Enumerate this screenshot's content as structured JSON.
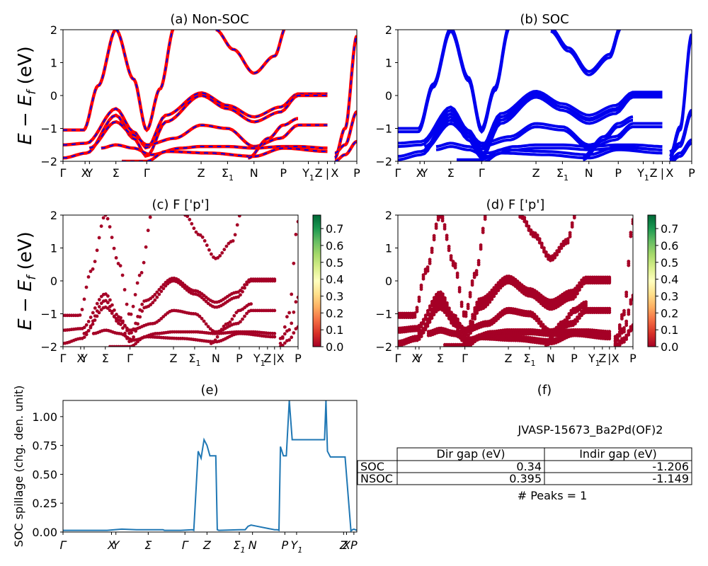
{
  "panels": {
    "a": {
      "title": "(a) Non-SOC"
    },
    "b": {
      "title": "(b) SOC"
    },
    "c": {
      "title": "(c)  F ['p']"
    },
    "d": {
      "title": "(d) F ['p']"
    },
    "e": {
      "title": "(e)"
    },
    "f": {
      "title": "(f)"
    }
  },
  "band_ylabel": "E − E",
  "band_ylabel_sub": "f",
  "band_ylabel_unit": " (eV)",
  "band_yticks": [
    "2",
    "1",
    "0",
    "−1",
    "−2"
  ],
  "kpath_labels": [
    "Γ",
    "X",
    "Y",
    "Σ",
    "Γ",
    "Z",
    "Σ",
    "N",
    "P",
    "Y",
    "Z",
    "|",
    "X",
    "P"
  ],
  "kpath_subs": {
    "Sigma1": "1",
    "Y1": "1"
  },
  "colorbar_ticks": [
    "0.7",
    "0.6",
    "0.5",
    "0.4",
    "0.3",
    "0.2",
    "0.1",
    "0.0"
  ],
  "spillage_ylabel": "SOC spillage (chg. den. unit)",
  "spillage_yticks": [
    "1.00",
    "0.75",
    "0.50",
    "0.25",
    "0.00"
  ],
  "spillage_xticks": [
    "Γ",
    "X",
    "Y",
    "Σ",
    "Γ",
    "Z",
    "Σ",
    "N",
    "P",
    "Y",
    "Z",
    "X",
    "P"
  ],
  "table": {
    "name": "JVASP-15673_Ba2Pd(OF)2",
    "headers": [
      "Dir gap (eV)",
      "Indir gap (eV)"
    ],
    "rows": [
      {
        "label": "SOC",
        "dir": "0.34",
        "indir": "-1.206"
      },
      {
        "label": "NSOC",
        "dir": "0.395",
        "indir": "-1.149"
      }
    ],
    "peaks": "# Peaks = 1"
  },
  "colors": {
    "nsoc": "#ff0000",
    "soc": "#0000ee",
    "spill": "#1f77b4",
    "proj_low": "#a50026",
    "proj_high": "#006837"
  },
  "chart_data": [
    {
      "type": "line",
      "title": "(a) Non-SOC",
      "ylabel": "E − E_f (eV)",
      "ylim": [
        -2,
        2
      ],
      "x_ticks": [
        "Γ",
        "X",
        "Y",
        "Σ",
        "Γ",
        "Z",
        "Σ1",
        "N",
        "P",
        "Y1",
        "Z",
        "|",
        "X",
        "P"
      ],
      "series": [
        {
          "name": "Non-SOC",
          "color": "#ff0000"
        },
        {
          "name": "SOC",
          "color": "#0000ee"
        }
      ]
    },
    {
      "type": "line",
      "title": "(b) SOC",
      "ylabel": "E − E_f (eV)",
      "ylim": [
        -2,
        2
      ],
      "x_ticks": [
        "Γ",
        "X",
        "Y",
        "Σ",
        "Γ",
        "Z",
        "Σ1",
        "N",
        "P",
        "Y1",
        "Z",
        "|",
        "X",
        "P"
      ]
    },
    {
      "type": "scatter",
      "title": "(c)  F ['p']",
      "ylim": [
        -2,
        2
      ],
      "colorbar": {
        "min": 0.0,
        "max": 0.78,
        "ticks": [
          0.0,
          0.1,
          0.2,
          0.3,
          0.4,
          0.5,
          0.6,
          0.7
        ],
        "cmap": "RdYlGn"
      }
    },
    {
      "type": "scatter",
      "title": "(d) F ['p']",
      "ylim": [
        -2,
        2
      ],
      "colorbar": {
        "min": 0.0,
        "max": 0.78,
        "ticks": [
          0.0,
          0.1,
          0.2,
          0.3,
          0.4,
          0.5,
          0.6,
          0.7
        ],
        "cmap": "RdYlGn"
      }
    },
    {
      "type": "line",
      "title": "(e)",
      "ylabel": "SOC spillage (chg. den. unit)",
      "ylim": [
        0,
        1.14
      ],
      "x": [
        0,
        0.05,
        0.1,
        0.15,
        0.175,
        0.2,
        0.25,
        0.3,
        0.34,
        0.345,
        0.4,
        0.44,
        0.445,
        0.46,
        0.47,
        0.48,
        0.49,
        0.5,
        0.52,
        0.525,
        0.53,
        0.6,
        0.62,
        0.63,
        0.64,
        0.66,
        0.7,
        0.72,
        0.73,
        0.735,
        0.74,
        0.75,
        0.76,
        0.77,
        0.78,
        0.8,
        0.85,
        0.89,
        0.895,
        0.9,
        0.91,
        0.92,
        0.93,
        0.96,
        0.98,
        0.985,
        0.99,
        1.0
      ],
      "y": [
        0.015,
        0.015,
        0.015,
        0.015,
        0.02,
        0.025,
        0.02,
        0.02,
        0.02,
        0.015,
        0.015,
        0.02,
        0.015,
        0.7,
        0.64,
        0.8,
        0.75,
        0.66,
        0.66,
        0.02,
        0.015,
        0.02,
        0.02,
        0.05,
        0.06,
        0.05,
        0.03,
        0.02,
        0.02,
        0.015,
        0.74,
        0.66,
        0.66,
        1.14,
        0.8,
        0.8,
        0.8,
        0.8,
        1.14,
        0.7,
        0.65,
        0.65,
        0.65,
        0.65,
        0.01,
        0.02,
        0.025,
        0.015
      ],
      "x_ticks": [
        "Γ",
        "X",
        "Y",
        "Σ",
        "Γ",
        "Z",
        "Σ1",
        "N",
        "P",
        "Y1",
        "Z",
        "X",
        "P"
      ],
      "series": [
        {
          "color": "#1f77b4"
        }
      ]
    },
    {
      "type": "table",
      "title": "(f)",
      "columns": [
        "Dir gap (eV)",
        "Indir gap (eV)"
      ],
      "rows": [
        [
          "SOC",
          "0.34",
          "-1.206"
        ],
        [
          "NSOC",
          "0.395",
          "-1.149"
        ]
      ]
    }
  ]
}
